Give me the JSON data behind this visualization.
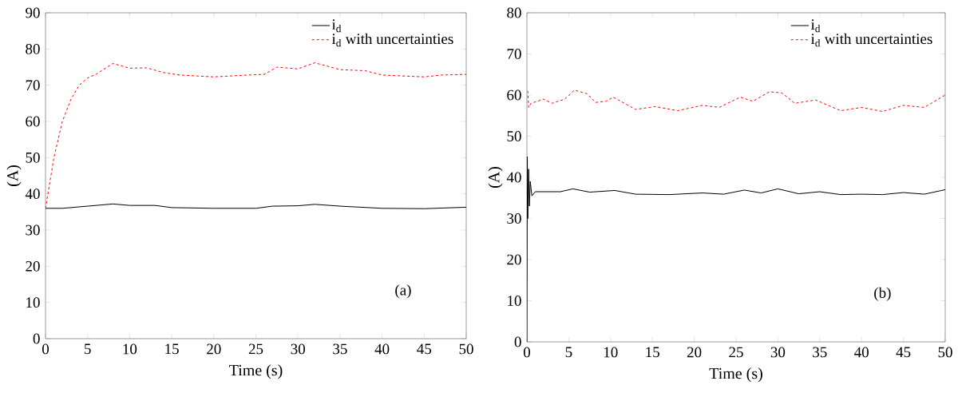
{
  "chart_data": [
    {
      "type": "line",
      "xlabel": "Time (s)",
      "ylabel": "(A)",
      "annotations": [
        "(a)"
      ],
      "xlim": [
        0,
        50
      ],
      "ylim": [
        0,
        90
      ],
      "xticks": [
        0,
        5,
        10,
        15,
        20,
        25,
        30,
        35,
        40,
        45,
        50
      ],
      "yticks": [
        0,
        10,
        20,
        30,
        40,
        50,
        60,
        70,
        80,
        90
      ],
      "legend": "top right",
      "series": [
        {
          "name": "i$_{d}$",
          "color": "#000000",
          "line_style": "solid",
          "x": [
            0,
            2,
            5,
            8,
            10,
            13,
            15,
            20,
            25,
            27,
            30,
            32,
            35,
            40,
            45,
            50
          ],
          "values": [
            36,
            36,
            36.6,
            37.2,
            36.8,
            36.8,
            36.2,
            36,
            36,
            36.6,
            36.7,
            37.1,
            36.6,
            36,
            35.9,
            36.3
          ]
        },
        {
          "name": "i$_{d}$ with uncertainties",
          "color": "#ff0000",
          "line_style": "dashed",
          "x": [
            0,
            1,
            2,
            3,
            4,
            5,
            6,
            8,
            10,
            12,
            14,
            16,
            20,
            24,
            26,
            27.5,
            30,
            32,
            35,
            38,
            40,
            45,
            47,
            50
          ],
          "values": [
            36,
            50,
            60,
            66,
            70,
            72,
            73,
            76,
            74.7,
            74.8,
            73.5,
            72.8,
            72.3,
            72.8,
            73,
            75,
            74.5,
            76.2,
            74.3,
            74,
            72.8,
            72.3,
            72.8,
            73
          ]
        }
      ]
    },
    {
      "type": "line",
      "xlabel": "Time (s)",
      "ylabel": "(A)",
      "annotations": [
        "(b)"
      ],
      "xlim": [
        0,
        50
      ],
      "ylim": [
        0,
        80
      ],
      "xticks": [
        0,
        5,
        10,
        15,
        20,
        25,
        30,
        35,
        40,
        45,
        50
      ],
      "yticks": [
        0,
        10,
        20,
        30,
        40,
        50,
        60,
        70,
        80
      ],
      "legend": "top right",
      "series": [
        {
          "name": "i$_{d}$",
          "color": "#000000",
          "line_style": "solid",
          "x": [
            0,
            0.05,
            0.1,
            0.2,
            0.3,
            0.4,
            0.6,
            1,
            4,
            5.5,
            7.5,
            10.5,
            13,
            17,
            21,
            23.5,
            26,
            28,
            30,
            32.5,
            35,
            37.5,
            40,
            42.5,
            45,
            47.5,
            50
          ],
          "values": [
            0,
            45,
            30,
            42,
            33,
            39,
            35.5,
            36.5,
            36.5,
            37.2,
            36.4,
            36.8,
            35.9,
            35.8,
            36.2,
            35.9,
            36.9,
            36.2,
            37.2,
            36,
            36.5,
            35.8,
            35.9,
            35.8,
            36.3,
            35.9,
            37
          ]
        },
        {
          "name": "i$_{d}$ with uncertainties",
          "color": "#ff0000",
          "line_style": "dashed",
          "x": [
            0.1,
            0.2,
            0.5,
            2,
            3,
            4.5,
            5.7,
            7.2,
            8.2,
            9.5,
            10.3,
            13,
            15.3,
            18,
            21,
            23,
            25.5,
            27,
            29,
            30.5,
            32,
            34.5,
            37.5,
            40,
            42.5,
            45,
            47.5,
            50
          ],
          "values": [
            61,
            57,
            58,
            59,
            58,
            59,
            61.2,
            60.3,
            58.2,
            58.5,
            59.5,
            56.5,
            57.2,
            56.2,
            57.5,
            57,
            59.5,
            58.5,
            60.8,
            60.5,
            58,
            58.8,
            56.2,
            57,
            56,
            57.5,
            57,
            60
          ]
        }
      ]
    }
  ]
}
